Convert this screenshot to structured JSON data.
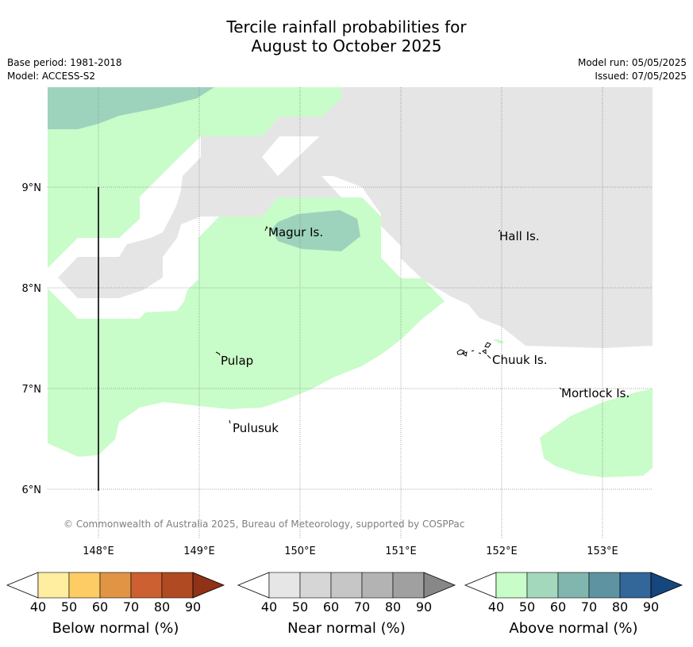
{
  "title_line1": "Tercile rainfall probabilities for",
  "title_line2": "August to October 2025",
  "base_period": "Base period: 1981-2018",
  "model": "Model: ACCESS-S2",
  "model_run": "Model run: 05/05/2025",
  "issued": "Issued: 07/05/2025",
  "copyright": "© Commonwealth of Australia 2025, Bureau of Meteorology, supported by COSPPac",
  "map": {
    "lon_labels": [
      "148°E",
      "149°E",
      "150°E",
      "151°E",
      "152°E",
      "153°E"
    ],
    "lat_labels": [
      "9°N",
      "8°N",
      "7°N",
      "6°N"
    ],
    "places": [
      "Magur Is.",
      "Hall Is.",
      "Pulap",
      "Chuuk Is.",
      "Mortlock Is.",
      "Pulusuk"
    ]
  },
  "colorbars": [
    {
      "name": "Below normal (%)",
      "ticks": [
        "40",
        "50",
        "60",
        "70",
        "80",
        "90"
      ],
      "colors": [
        "#ffffff",
        "#ffeda0",
        "#fecc65",
        "#e09444",
        "#cc6030",
        "#b04a22",
        "#8f3216"
      ]
    },
    {
      "name": "Near normal (%)",
      "ticks": [
        "40",
        "50",
        "60",
        "70",
        "80",
        "90"
      ],
      "colors": [
        "#ffffff",
        "#e6e6e6",
        "#d6d6d6",
        "#c6c6c6",
        "#b3b3b3",
        "#a0a0a0",
        "#878787"
      ]
    },
    {
      "name": "Above normal (%)",
      "ticks": [
        "40",
        "50",
        "60",
        "70",
        "80",
        "90"
      ],
      "colors": [
        "#ffffff",
        "#c8fcc8",
        "#a4d8bc",
        "#80b6ae",
        "#5e94a2",
        "#336699",
        "#15467c"
      ]
    }
  ],
  "colors": {
    "near_normal_fill": "#e5e5e5",
    "above_normal_40_50": "#c8fcc8",
    "above_normal_50_60": "#9dd3bd",
    "gridline": "#888888"
  }
}
